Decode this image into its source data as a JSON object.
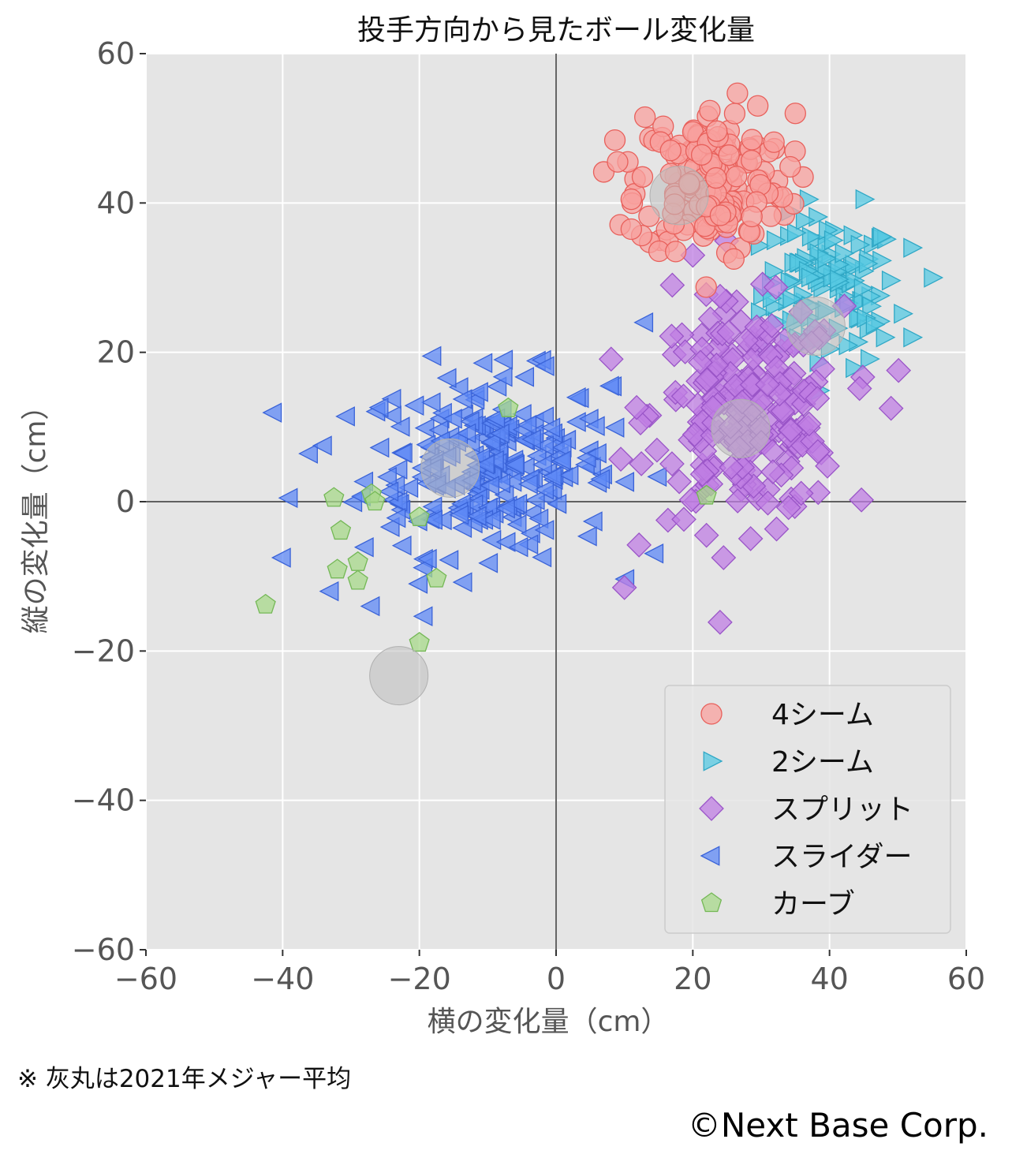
{
  "chart_data": {
    "type": "scatter",
    "title": "投手方向から見たボール変化量",
    "xlabel": "横の変化量（cm）",
    "ylabel": "縦の変化量（cm）",
    "xlim": [
      -60,
      60
    ],
    "ylim": [
      -60,
      60
    ],
    "xticks": [
      -60,
      -40,
      -20,
      0,
      20,
      40,
      60
    ],
    "yticks": [
      -60,
      -40,
      -20,
      0,
      20,
      40,
      60
    ],
    "tick_labels_x": [
      "−60",
      "−40",
      "−20",
      "0",
      "20",
      "40",
      "60"
    ],
    "tick_labels_y": [
      "−60",
      "−40",
      "−20",
      "0",
      "20",
      "40",
      "60"
    ],
    "grid": true,
    "background": "#e5e5e5",
    "legend_position": "bottom-right",
    "series": [
      {
        "name": "4シーム",
        "marker": "circle",
        "color": "#f8a09d",
        "edge": "#e8605b",
        "center": [
          23,
          43
        ],
        "spread": [
          5.5,
          5
        ],
        "count": 170,
        "outliers": [
          [
            10.5,
            45.5
          ],
          [
            9,
            45.5
          ],
          [
            13,
            51.5
          ],
          [
            35,
            52
          ],
          [
            29.5,
            53
          ],
          [
            11,
            40.5
          ],
          [
            11,
            36.5
          ],
          [
            17.5,
            33.5
          ],
          [
            26,
            32.5
          ]
        ]
      },
      {
        "name": "2シーム",
        "marker": "triangle-right",
        "color": "#56c8e2",
        "edge": "#30a8c6",
        "center": [
          40,
          28
        ],
        "spread": [
          5,
          5
        ],
        "count": 110,
        "outliers": [
          [
            55,
            30
          ],
          [
            52,
            34
          ],
          [
            45,
            40.5
          ],
          [
            52,
            22
          ],
          [
            48,
            22
          ],
          [
            35,
            36
          ],
          [
            32,
            35
          ]
        ]
      },
      {
        "name": "スプリット",
        "marker": "diamond",
        "color": "#bf7de3",
        "edge": "#9a55c8",
        "center": [
          28,
          12
        ],
        "spread": [
          7,
          7
        ],
        "count": 240,
        "outliers": [
          [
            10,
            -11.5
          ],
          [
            22,
            -4.5
          ],
          [
            24.5,
            -7.5
          ],
          [
            49,
            12.5
          ],
          [
            20,
            33
          ],
          [
            17,
            29
          ],
          [
            24,
            27.5
          ]
        ]
      },
      {
        "name": "スライダー",
        "marker": "triangle-left",
        "color": "#5e88f6",
        "edge": "#3a63d8",
        "center": [
          -10,
          5
        ],
        "spread": [
          9,
          6
        ],
        "count": 240,
        "outliers": [
          [
            -18,
            19.5
          ],
          [
            13,
            24
          ],
          [
            -39,
            0.5
          ],
          [
            -40,
            -7.5
          ],
          [
            -33,
            -12
          ],
          [
            -27,
            -14
          ],
          [
            -20,
            -11
          ],
          [
            -34,
            7.5
          ],
          [
            8,
            15.5
          ]
        ]
      },
      {
        "name": "カーブ",
        "marker": "pentagon",
        "color": "#a7d88a",
        "edge": "#74b856",
        "center": [
          -27,
          -5
        ],
        "spread": [
          6,
          6
        ],
        "count": 0,
        "points": [
          [
            -42.5,
            -13.8
          ],
          [
            -20,
            -18.9
          ],
          [
            -29,
            -10.6
          ],
          [
            -32,
            -9.1
          ],
          [
            -29,
            -8.1
          ],
          [
            -31.5,
            -3.9
          ],
          [
            -20,
            -2.1
          ],
          [
            -32.5,
            0.5
          ],
          [
            -27,
            1.0
          ],
          [
            -26.5,
            0.0
          ],
          [
            -17.5,
            -10.3
          ],
          [
            -7,
            12.5
          ],
          [
            22,
            0.8
          ]
        ]
      }
    ],
    "league_average": [
      [
        18,
        41
      ],
      [
        38,
        23.5
      ],
      [
        27,
        9.8
      ],
      [
        -15.5,
        4.5
      ],
      [
        -23,
        -23.3
      ]
    ],
    "league_average_color": "#bdbdbd"
  },
  "legend": {
    "items": [
      {
        "label": "4シーム",
        "marker": "circle"
      },
      {
        "label": "2シーム",
        "marker": "triangle-right"
      },
      {
        "label": "スプリット",
        "marker": "diamond"
      },
      {
        "label": "スライダー",
        "marker": "triangle-left"
      },
      {
        "label": "カーブ",
        "marker": "pentagon"
      }
    ]
  },
  "note": "※ 灰丸は2021年メジャー平均",
  "credit": "©Next Base Corp."
}
